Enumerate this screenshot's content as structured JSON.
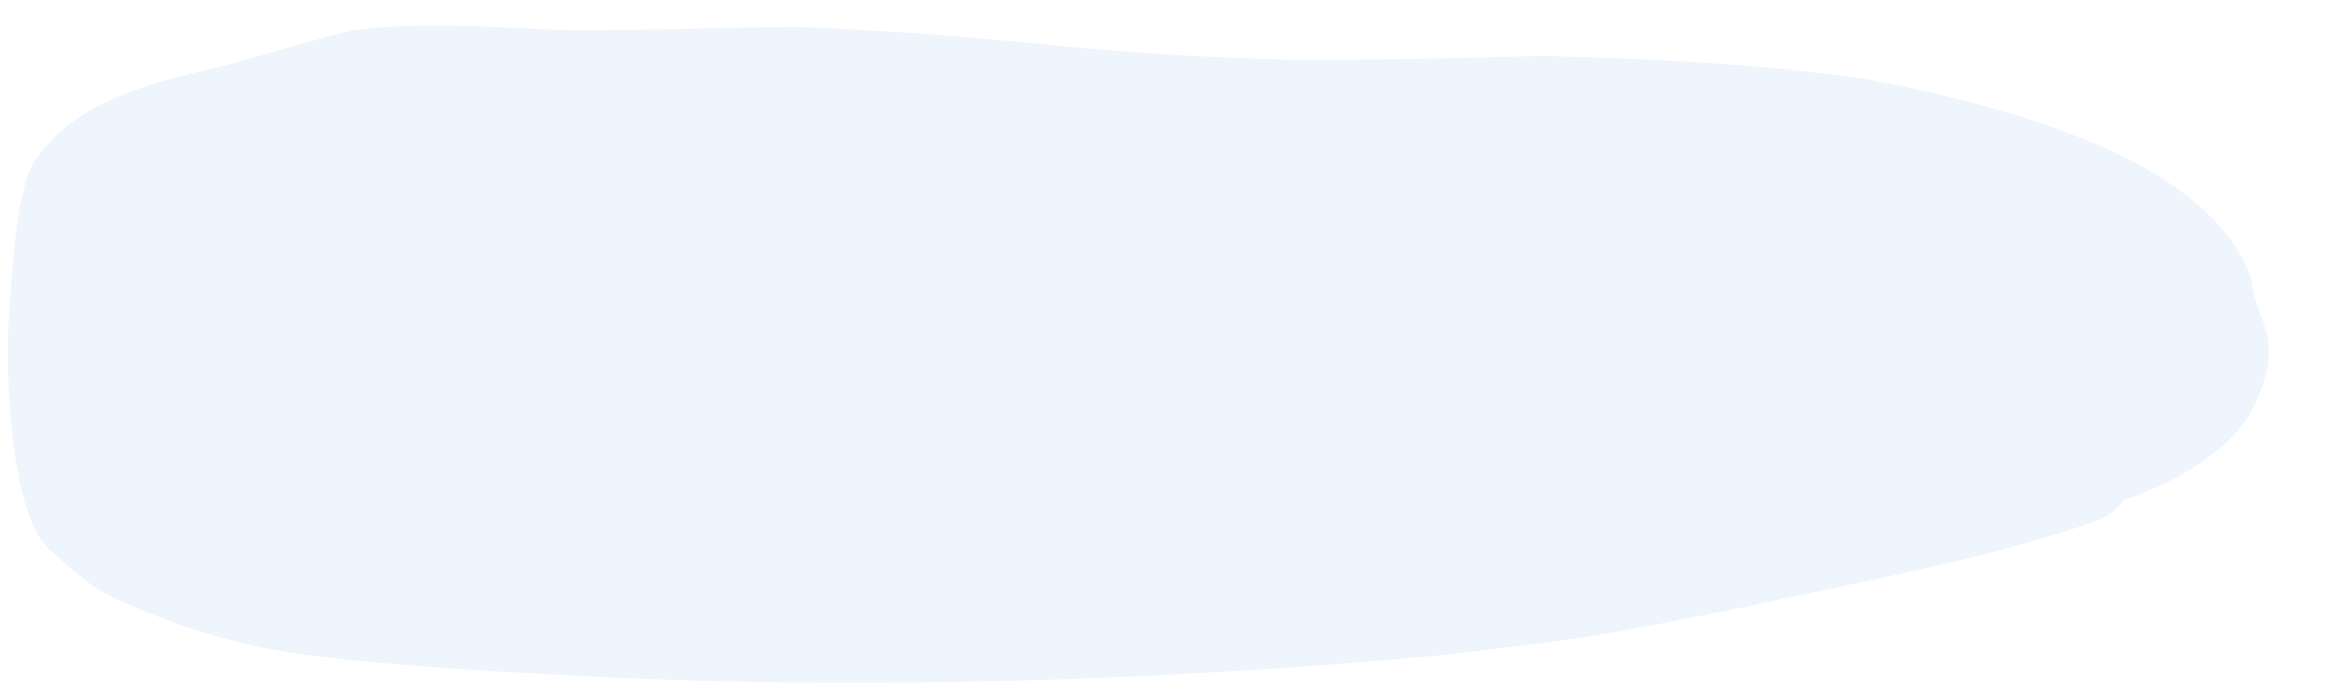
{
  "shape": {
    "kind": "freeform-blob",
    "fill_color": "#eff5fc",
    "background_color": "#ffffff"
  }
}
